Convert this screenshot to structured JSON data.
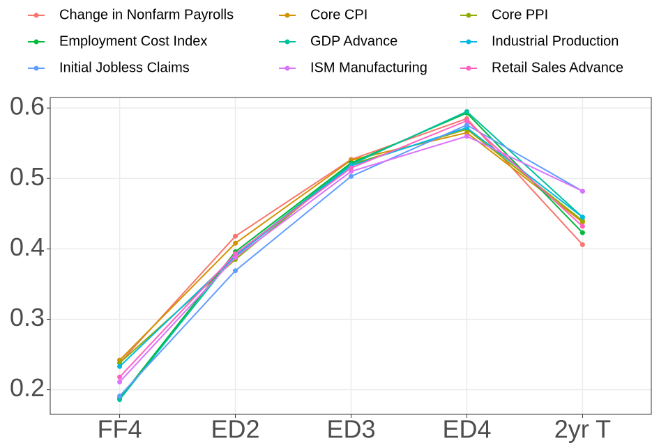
{
  "chart_data": {
    "type": "line",
    "categories": [
      "FF4",
      "ED2",
      "ED3",
      "ED4",
      "2yr T"
    ],
    "ylim": [
      0.165,
      0.615
    ],
    "yticks": [
      0.2,
      0.3,
      0.4,
      0.5,
      0.6
    ],
    "grid": true,
    "legend": "top",
    "series": [
      {
        "name": "Change in Nonfarm Payrolls",
        "color": "#F8766D",
        "values": [
          0.238,
          0.418,
          0.527,
          0.585,
          0.406
        ]
      },
      {
        "name": "Core CPI",
        "color": "#D39200",
        "values": [
          0.242,
          0.408,
          0.526,
          0.565,
          0.438
        ]
      },
      {
        "name": "Core PPI",
        "color": "#93AA00",
        "values": [
          0.238,
          0.385,
          0.52,
          0.57,
          0.44
        ]
      },
      {
        "name": "Employment Cost Index",
        "color": "#00BA38",
        "values": [
          0.188,
          0.396,
          0.522,
          0.593,
          0.423
        ]
      },
      {
        "name": "GDP Advance",
        "color": "#00C19F",
        "values": [
          0.186,
          0.392,
          0.52,
          0.595,
          0.445
        ]
      },
      {
        "name": "Industrial Production",
        "color": "#00B9E3",
        "values": [
          0.233,
          0.39,
          0.518,
          0.572,
          0.445
        ]
      },
      {
        "name": "Initial Jobless Claims",
        "color": "#619CFF",
        "values": [
          0.191,
          0.369,
          0.503,
          0.576,
          0.482
        ]
      },
      {
        "name": "ISM Manufacturing",
        "color": "#DB72FB",
        "values": [
          0.211,
          0.388,
          0.51,
          0.56,
          0.482
        ]
      },
      {
        "name": "Retail Sales Advance",
        "color": "#FF61C3",
        "values": [
          0.218,
          0.393,
          0.515,
          0.582,
          0.432
        ]
      }
    ]
  }
}
